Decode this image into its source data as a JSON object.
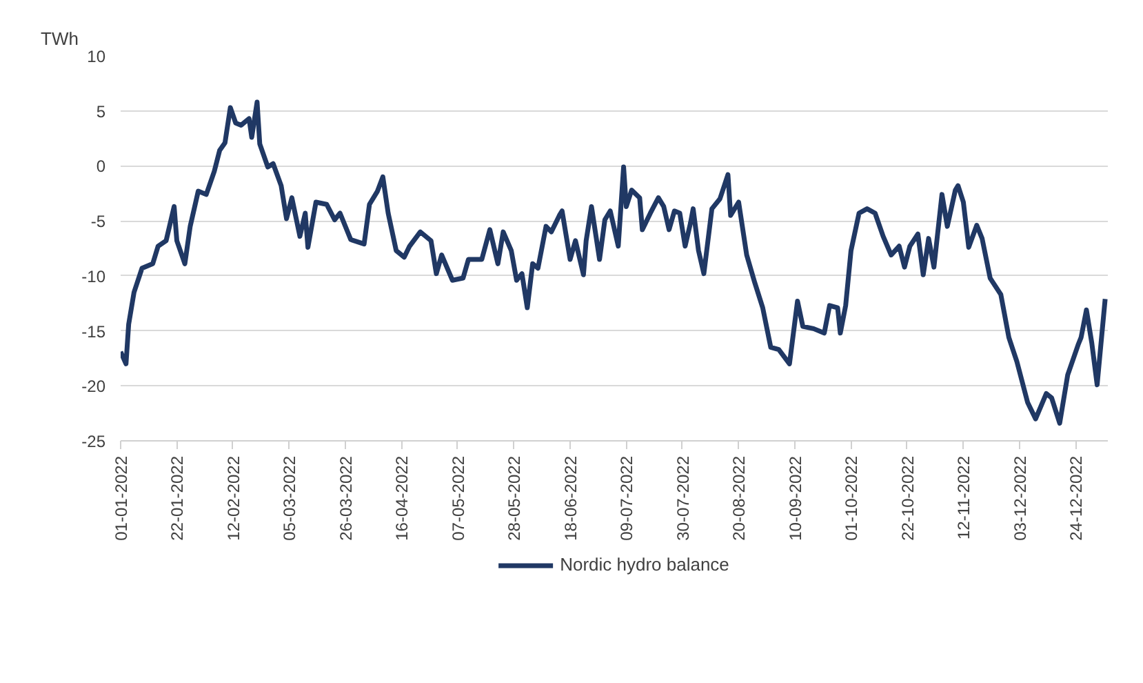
{
  "chart_data": {
    "type": "line",
    "ylabel": "TWh",
    "x": [
      "2022-01-01",
      "2022-01-03",
      "2022-01-04",
      "2022-01-06",
      "2022-01-09",
      "2022-01-13",
      "2022-01-15",
      "2022-01-18",
      "2022-01-21",
      "2022-01-22",
      "2022-01-25",
      "2022-01-27",
      "2022-01-30",
      "2022-02-02",
      "2022-02-05",
      "2022-02-07",
      "2022-02-09",
      "2022-02-11",
      "2022-02-13",
      "2022-02-15",
      "2022-02-18",
      "2022-02-19",
      "2022-02-21",
      "2022-02-22",
      "2022-02-25",
      "2022-02-27",
      "2022-03-02",
      "2022-03-04",
      "2022-03-06",
      "2022-03-09",
      "2022-03-11",
      "2022-03-12",
      "2022-03-15",
      "2022-03-19",
      "2022-03-22",
      "2022-03-24",
      "2022-03-28",
      "2022-04-02",
      "2022-04-04",
      "2022-04-07",
      "2022-04-09",
      "2022-04-11",
      "2022-04-14",
      "2022-04-17",
      "2022-04-19",
      "2022-04-23",
      "2022-04-27",
      "2022-04-29",
      "2022-05-01",
      "2022-05-05",
      "2022-05-09",
      "2022-05-11",
      "2022-05-16",
      "2022-05-19",
      "2022-05-22",
      "2022-05-24",
      "2022-05-27",
      "2022-05-29",
      "2022-05-31",
      "2022-06-02",
      "2022-06-04",
      "2022-06-06",
      "2022-06-09",
      "2022-06-11",
      "2022-06-14",
      "2022-06-15",
      "2022-06-18",
      "2022-06-20",
      "2022-06-23",
      "2022-06-24",
      "2022-06-26",
      "2022-06-29",
      "2022-07-01",
      "2022-07-03",
      "2022-07-06",
      "2022-07-08",
      "2022-07-09",
      "2022-07-11",
      "2022-07-14",
      "2022-07-15",
      "2022-07-18",
      "2022-07-21",
      "2022-07-23",
      "2022-07-25",
      "2022-07-27",
      "2022-07-29",
      "2022-07-31",
      "2022-08-02",
      "2022-08-03",
      "2022-08-05",
      "2022-08-07",
      "2022-08-10",
      "2022-08-13",
      "2022-08-16",
      "2022-08-17",
      "2022-08-20",
      "2022-08-23",
      "2022-08-26",
      "2022-08-29",
      "2022-09-01",
      "2022-09-04",
      "2022-09-08",
      "2022-09-11",
      "2022-09-13",
      "2022-09-17",
      "2022-09-21",
      "2022-09-23",
      "2022-09-26",
      "2022-09-27",
      "2022-09-29",
      "2022-10-01",
      "2022-10-04",
      "2022-10-07",
      "2022-10-10",
      "2022-10-13",
      "2022-10-16",
      "2022-10-19",
      "2022-10-21",
      "2022-10-23",
      "2022-10-26",
      "2022-10-28",
      "2022-10-30",
      "2022-11-01",
      "2022-11-04",
      "2022-11-06",
      "2022-11-09",
      "2022-11-10",
      "2022-11-12",
      "2022-11-14",
      "2022-11-17",
      "2022-11-19",
      "2022-11-22",
      "2022-11-26",
      "2022-11-29",
      "2022-12-02",
      "2022-12-06",
      "2022-12-09",
      "2022-12-13",
      "2022-12-15",
      "2022-12-18",
      "2022-12-21",
      "2022-12-25",
      "2022-12-26",
      "2022-12-28",
      "2022-12-30",
      "2023-01-01",
      "2023-01-04"
    ],
    "series": [
      {
        "name": "Nordic hydro balance",
        "color": "#203864",
        "values": [
          -16.9,
          -18.0,
          -14.4,
          -11.5,
          -9.3,
          -8.9,
          -7.3,
          -6.8,
          -3.7,
          -6.8,
          -8.9,
          -5.5,
          -2.3,
          -2.6,
          -0.5,
          1.4,
          2.1,
          5.3,
          3.9,
          3.7,
          4.3,
          2.6,
          5.8,
          2.0,
          -0.1,
          0.2,
          -1.8,
          -4.8,
          -2.9,
          -6.4,
          -4.3,
          -7.4,
          -3.3,
          -3.5,
          -4.9,
          -4.3,
          -6.7,
          -7.1,
          -3.5,
          -2.3,
          -1.0,
          -4.3,
          -7.7,
          -8.3,
          -7.3,
          -6.0,
          -6.8,
          -9.8,
          -8.1,
          -10.4,
          -10.2,
          -8.5,
          -8.5,
          -5.8,
          -8.9,
          -6.0,
          -7.7,
          -10.4,
          -9.8,
          -12.9,
          -8.9,
          -9.3,
          -5.5,
          -6.0,
          -4.5,
          -4.1,
          -8.5,
          -6.8,
          -9.9,
          -6.8,
          -3.7,
          -8.5,
          -4.9,
          -4.1,
          -7.3,
          -0.1,
          -3.7,
          -2.2,
          -2.9,
          -5.8,
          -4.3,
          -2.9,
          -3.7,
          -5.8,
          -4.1,
          -4.3,
          -7.3,
          -5.2,
          -3.9,
          -7.7,
          -9.8,
          -3.9,
          -3.0,
          -0.8,
          -4.5,
          -3.3,
          -8.1,
          -10.6,
          -12.9,
          -16.5,
          -16.7,
          -18.0,
          -12.3,
          -14.6,
          -14.8,
          -15.2,
          -12.7,
          -12.9,
          -15.2,
          -12.7,
          -7.7,
          -4.3,
          -3.9,
          -4.3,
          -6.4,
          -8.1,
          -7.3,
          -9.2,
          -7.3,
          -6.2,
          -9.9,
          -6.6,
          -9.2,
          -2.6,
          -5.5,
          -2.2,
          -1.8,
          -3.3,
          -7.4,
          -5.4,
          -6.6,
          -10.2,
          -11.7,
          -15.6,
          -17.8,
          -21.5,
          -23.0,
          -20.7,
          -21.1,
          -23.4,
          -19.0,
          -16.2,
          -15.6,
          -13.1,
          -16.1,
          -19.9,
          -12.1
        ]
      }
    ],
    "xlim": [
      "2022-01-01",
      "2023-01-05"
    ],
    "xticks": [
      {
        "value": "2022-01-01",
        "label": "01-01-2022"
      },
      {
        "value": "2022-01-22",
        "label": "22-01-2022"
      },
      {
        "value": "2022-02-12",
        "label": "12-02-2022"
      },
      {
        "value": "2022-03-05",
        "label": "05-03-2022"
      },
      {
        "value": "2022-03-26",
        "label": "26-03-2022"
      },
      {
        "value": "2022-04-16",
        "label": "16-04-2022"
      },
      {
        "value": "2022-05-07",
        "label": "07-05-2022"
      },
      {
        "value": "2022-05-28",
        "label": "28-05-2022"
      },
      {
        "value": "2022-06-18",
        "label": "18-06-2022"
      },
      {
        "value": "2022-07-09",
        "label": "09-07-2022"
      },
      {
        "value": "2022-07-30",
        "label": "30-07-2022"
      },
      {
        "value": "2022-08-20",
        "label": "20-08-2022"
      },
      {
        "value": "2022-09-10",
        "label": "10-09-2022"
      },
      {
        "value": "2022-10-01",
        "label": "01-10-2022"
      },
      {
        "value": "2022-10-22",
        "label": "22-10-2022"
      },
      {
        "value": "2022-11-12",
        "label": "12-11-2022"
      },
      {
        "value": "2022-12-03",
        "label": "03-12-2022"
      },
      {
        "value": "2022-12-24",
        "label": "24-12-2022"
      }
    ],
    "ylim": [
      -25,
      10
    ],
    "yticks": [
      -25,
      -20,
      -15,
      -10,
      -5,
      0,
      5,
      10
    ],
    "grid": "y",
    "legend": "bottom",
    "marker": "none",
    "line_style": "solid"
  }
}
